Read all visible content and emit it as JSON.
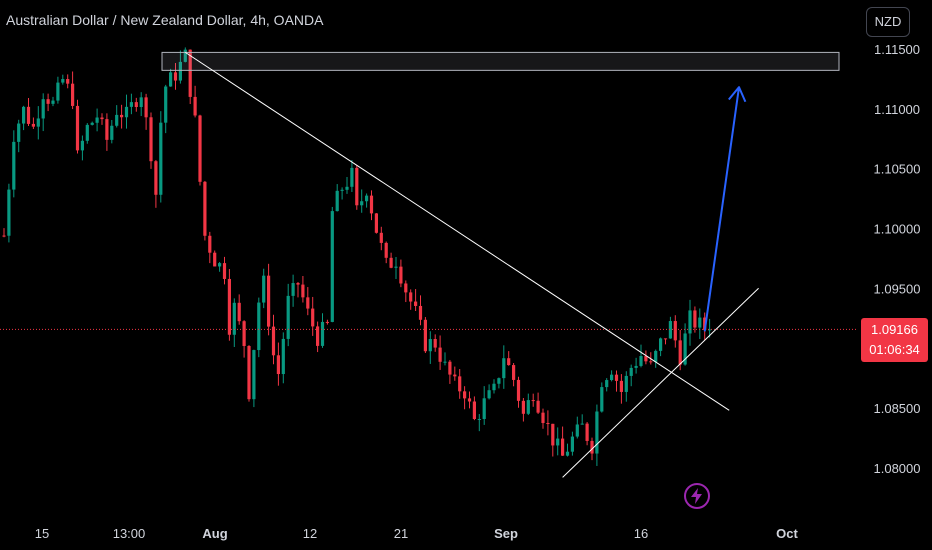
{
  "header": {
    "title": "Australian Dollar / New Zealand Dollar, 4h, OANDA",
    "currency_button": "NZD"
  },
  "last_price": {
    "price": "1.09166",
    "countdown": "01:06:34"
  },
  "icons": {
    "alert": "lightning-icon"
  },
  "colors": {
    "background": "#000000",
    "up_candle": "#089981",
    "down_candle": "#f23645",
    "trendline": "#ffffff",
    "projection_arrow": "#2962ff",
    "price_line": "#f23645",
    "resistance_zone_border": "#b2b5be"
  },
  "chart_data": {
    "type": "candlestick",
    "symbol": "AUDNZD",
    "timeframe": "4h",
    "source": "OANDA",
    "y_axis": {
      "ticks": [
        1.115,
        1.11,
        1.105,
        1.1,
        1.095,
        1.09,
        1.085,
        1.08
      ],
      "tick_labels": [
        "1.11500",
        "1.11000",
        "1.10500",
        "1.10000",
        "1.09500",
        "1.09000",
        "1.08500",
        "1.08000"
      ],
      "range": [
        1.0775,
        1.1175
      ]
    },
    "x_axis": {
      "tick_labels": [
        "15",
        "13:00",
        "Aug",
        "12",
        "21",
        "Sep",
        "16",
        "Oct"
      ]
    },
    "price_path": [
      {
        "t": 0,
        "v": 1.0995
      },
      {
        "t": 2,
        "v": 1.108
      },
      {
        "t": 4,
        "v": 1.11
      },
      {
        "t": 6,
        "v": 1.1085
      },
      {
        "t": 8,
        "v": 1.1115
      },
      {
        "t": 10,
        "v": 1.1105
      },
      {
        "t": 12,
        "v": 1.1125
      },
      {
        "t": 14,
        "v": 1.111
      },
      {
        "t": 15,
        "v": 1.106
      },
      {
        "t": 17,
        "v": 1.1085
      },
      {
        "t": 19,
        "v": 1.1095
      },
      {
        "t": 21,
        "v": 1.1075
      },
      {
        "t": 23,
        "v": 1.11
      },
      {
        "t": 25,
        "v": 1.1095
      },
      {
        "t": 27,
        "v": 1.111
      },
      {
        "t": 28,
        "v": 1.1115
      },
      {
        "t": 30,
        "v": 1.1065
      },
      {
        "t": 31,
        "v": 1.103
      },
      {
        "t": 32,
        "v": 1.109
      },
      {
        "t": 33,
        "v": 1.112
      },
      {
        "t": 35,
        "v": 1.113
      },
      {
        "t": 37,
        "v": 1.1145
      },
      {
        "t": 39,
        "v": 1.109
      },
      {
        "t": 40,
        "v": 1.104
      },
      {
        "t": 41,
        "v": 1.0995
      },
      {
        "t": 43,
        "v": 1.0975
      },
      {
        "t": 45,
        "v": 1.0965
      },
      {
        "t": 46,
        "v": 1.092
      },
      {
        "t": 47,
        "v": 1.0935
      },
      {
        "t": 49,
        "v": 1.0905
      },
      {
        "t": 50,
        "v": 1.0865
      },
      {
        "t": 52,
        "v": 1.094
      },
      {
        "t": 53,
        "v": 1.0955
      },
      {
        "t": 55,
        "v": 1.0895
      },
      {
        "t": 56,
        "v": 1.088
      },
      {
        "t": 58,
        "v": 1.094
      },
      {
        "t": 60,
        "v": 1.0955
      },
      {
        "t": 62,
        "v": 1.093
      },
      {
        "t": 64,
        "v": 1.091
      },
      {
        "t": 66,
        "v": 1.092
      },
      {
        "t": 67,
        "v": 1.1015
      },
      {
        "t": 69,
        "v": 1.1035
      },
      {
        "t": 71,
        "v": 1.1045
      },
      {
        "t": 72,
        "v": 1.1015
      },
      {
        "t": 74,
        "v": 1.1035
      },
      {
        "t": 76,
        "v": 1.1
      },
      {
        "t": 78,
        "v": 1.097
      },
      {
        "t": 80,
        "v": 1.0975
      },
      {
        "t": 82,
        "v": 1.095
      },
      {
        "t": 84,
        "v": 1.093
      },
      {
        "t": 86,
        "v": 1.0905
      },
      {
        "t": 88,
        "v": 1.0905
      },
      {
        "t": 90,
        "v": 1.0885
      },
      {
        "t": 92,
        "v": 1.087
      },
      {
        "t": 94,
        "v": 1.0865
      },
      {
        "t": 96,
        "v": 1.084
      },
      {
        "t": 98,
        "v": 1.0855
      },
      {
        "t": 100,
        "v": 1.0865
      },
      {
        "t": 102,
        "v": 1.0895
      },
      {
        "t": 104,
        "v": 1.0875
      },
      {
        "t": 106,
        "v": 1.0845
      },
      {
        "t": 108,
        "v": 1.0865
      },
      {
        "t": 110,
        "v": 1.0845
      },
      {
        "t": 112,
        "v": 1.0825
      },
      {
        "t": 114,
        "v": 1.081
      },
      {
        "t": 116,
        "v": 1.0825
      },
      {
        "t": 118,
        "v": 1.0835
      },
      {
        "t": 120,
        "v": 1.082
      },
      {
        "t": 122,
        "v": 1.0875
      },
      {
        "t": 124,
        "v": 1.0885
      },
      {
        "t": 126,
        "v": 1.0865
      },
      {
        "t": 128,
        "v": 1.0885
      },
      {
        "t": 130,
        "v": 1.0895
      },
      {
        "t": 132,
        "v": 1.0885
      },
      {
        "t": 134,
        "v": 1.0905
      },
      {
        "t": 136,
        "v": 1.092
      },
      {
        "t": 138,
        "v": 1.0895
      },
      {
        "t": 140,
        "v": 1.0925
      },
      {
        "t": 142,
        "v": 1.092
      },
      {
        "t": 144,
        "v": 1.0915
      }
    ],
    "last_price": 1.09166,
    "annotations": [
      {
        "type": "zone",
        "label": "resistance zone",
        "y_range": [
          1.1133,
          1.1148
        ]
      },
      {
        "type": "trendline",
        "label": "descending trendline",
        "from": {
          "t": 37,
          "v": 1.1148
        },
        "to": {
          "t": 148,
          "v": 1.0849
        }
      },
      {
        "type": "trendline",
        "label": "ascending trendline",
        "from": {
          "t": 114,
          "v": 1.0793
        },
        "to": {
          "t": 154,
          "v": 1.0951
        }
      },
      {
        "type": "arrow",
        "label": "projected move up",
        "from": {
          "t": 143,
          "v": 1.0915
        },
        "to": {
          "t": 150,
          "v": 1.1119
        }
      }
    ],
    "grid": false
  }
}
